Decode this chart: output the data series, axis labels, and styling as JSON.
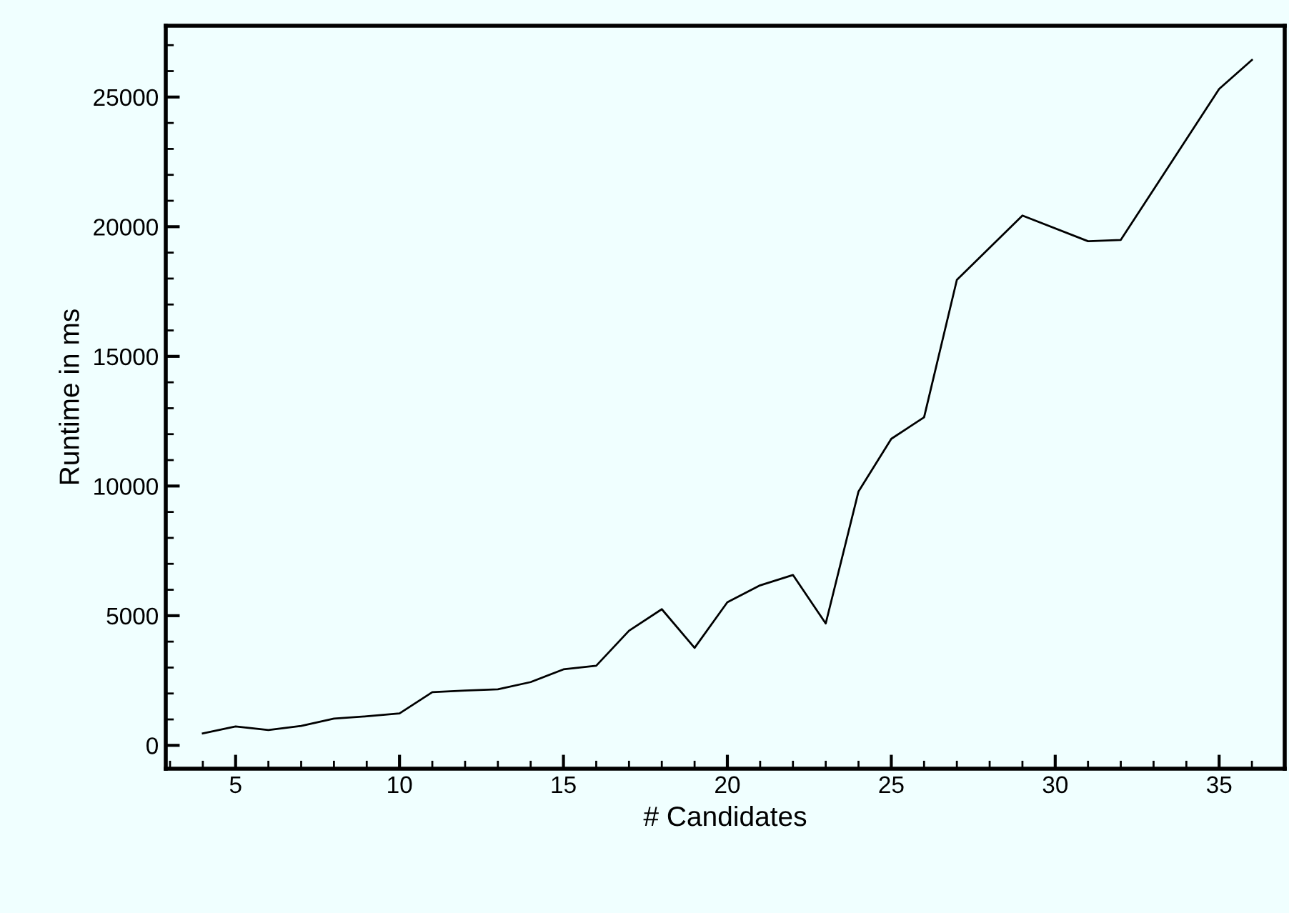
{
  "chart_data": {
    "type": "line",
    "xlabel": "# Candidates",
    "ylabel": "Runtime in ms",
    "x": [
      4,
      5,
      6,
      7,
      8,
      9,
      10,
      11,
      12,
      13,
      14,
      15,
      16,
      17,
      18,
      19,
      20,
      21,
      22,
      23,
      24,
      25,
      26,
      27,
      29,
      31,
      32,
      35,
      36
    ],
    "series": [
      {
        "color": "#000000",
        "values": [
          460,
          730,
          590,
          750,
          1030,
          1120,
          1230,
          2050,
          2110,
          2160,
          2440,
          2930,
          3070,
          4420,
          5250,
          3760,
          5520,
          6170,
          6570,
          4700,
          9790,
          11820,
          12650,
          17950,
          20430,
          19440,
          19490,
          25310,
          26430
        ]
      }
    ],
    "xlim": [
      2.87,
      37.0
    ],
    "ylim": [
      -900,
      27750
    ],
    "xticks": [
      5,
      10,
      15,
      20,
      25,
      30,
      35
    ],
    "yticks": [
      0,
      5000,
      10000,
      15000,
      20000,
      25000
    ],
    "grid": false,
    "legend": false,
    "marker": "none",
    "line_style": "solid"
  }
}
